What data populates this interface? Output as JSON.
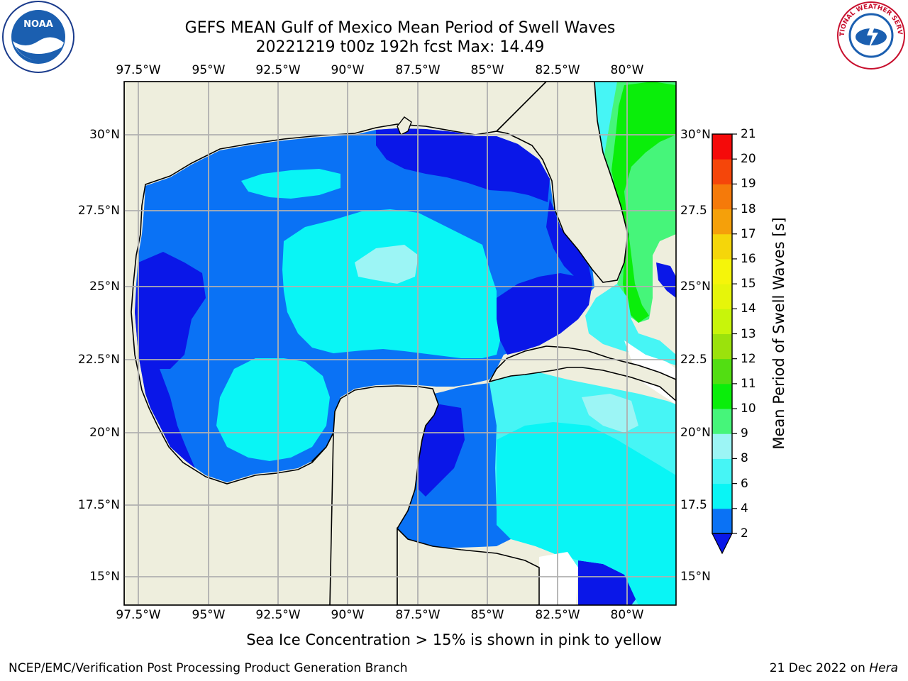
{
  "title": {
    "line1": "GEFS MEAN Gulf of Mexico Mean Period of Swell Waves",
    "line2": "20221219 t00z 192h fcst   Max: 14.49"
  },
  "axes": {
    "lon_labels": [
      "97.5°W",
      "95°W",
      "92.5°W",
      "90°W",
      "87.5°W",
      "85°W",
      "82.5°W",
      "80°W"
    ],
    "lat_labels_left": [
      "30°N",
      "27.5°N",
      "25°N",
      "22.5°N",
      "20°N",
      "17.5°N",
      "15°N"
    ],
    "lat_labels_right": [
      "30°N",
      "27.5",
      "25°N",
      "22.5",
      "20°N",
      "17.5",
      "15°N"
    ],
    "lon_range": [
      -98,
      -78.2
    ],
    "lat_range": [
      14.0,
      31.7
    ]
  },
  "colorbar": {
    "label": "Mean Period of Swell Waves [s]",
    "ticks": [
      "2",
      "4",
      "6",
      "8",
      "9",
      "10",
      "11",
      "12",
      "13",
      "14",
      "15",
      "16",
      "17",
      "18",
      "19",
      "20",
      "21"
    ],
    "colors": [
      "#0a17e8",
      "#0a72f5",
      "#09f5f5",
      "#46f5f5",
      "#9cf5f5",
      "#46f57a",
      "#0aee0a",
      "#52de12",
      "#9be20c",
      "#c8f50a",
      "#e6f50a",
      "#f5f50a",
      "#f5d60a",
      "#f5a00a",
      "#f57a0a",
      "#f5460a",
      "#f50a0a"
    ],
    "extend": "min"
  },
  "note": "Sea Ice Concentration > 15% is shown in pink to yellow",
  "footer": {
    "left": "NCEP/EMC/Verification Post Processing Product Generation Branch",
    "date": "21 Dec 2022 on ",
    "host": "Hera"
  },
  "logos": {
    "left": "noaa-logo",
    "right": "national-weather-service-logo",
    "right_text": "NATIONAL WEATHER SERVICE"
  },
  "colors": {
    "land": "#eeeedd",
    "grid": "#b0b0b0",
    "sea_base": "#0a72f5"
  }
}
